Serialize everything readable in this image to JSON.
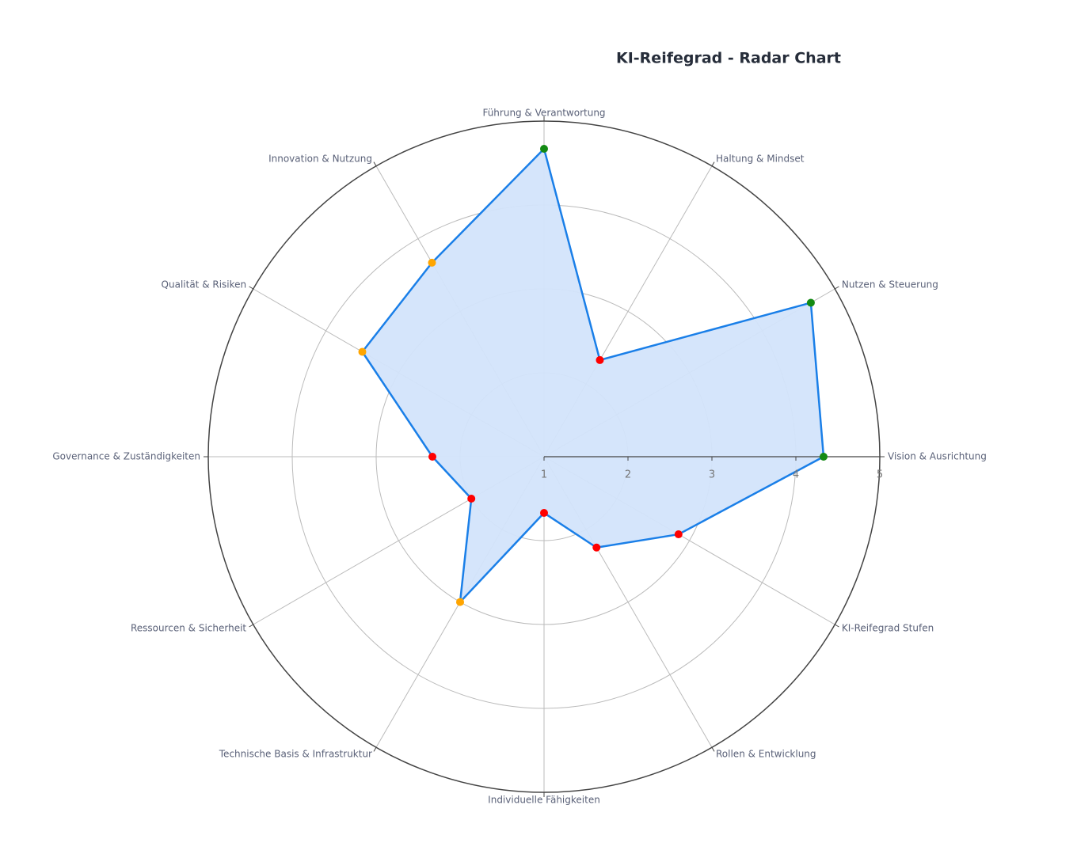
{
  "chart_data": {
    "type": "radar",
    "title": "KI-Reifegrad - Radar Chart",
    "categories": [
      "Vision & Ausrichtung",
      "Nutzen & Steuerung",
      "Haltung & Mindset",
      "Führung & Verantwortung",
      "Innovation & Nutzung",
      "Qualität & Risiken",
      "Governance & Zuständigkeiten",
      "Ressourcen & Sicherheit",
      "Technische Basis & Infrastruktur",
      "Individuelle Fähigkeiten",
      "Rollen & Entwicklung",
      "KI-Reifegrad Stufen"
    ],
    "values": [
      4.33,
      4.67,
      2.33,
      4.67,
      3.67,
      3.5,
      2.33,
      2.0,
      3.0,
      1.67,
      2.25,
      2.85
    ],
    "marker_colors": [
      "#138a13",
      "#138a13",
      "#ff0000",
      "#138a13",
      "#ffa500",
      "#ffa500",
      "#ff0000",
      "#ff0000",
      "#ffa500",
      "#ff0000",
      "#ff0000",
      "#ff0000"
    ],
    "color": "#1a7fe8",
    "fill_color": "#d3e4fb",
    "rlim": [
      1,
      5
    ],
    "rticks": [
      1,
      2,
      3,
      4,
      5
    ],
    "grid": true
  }
}
